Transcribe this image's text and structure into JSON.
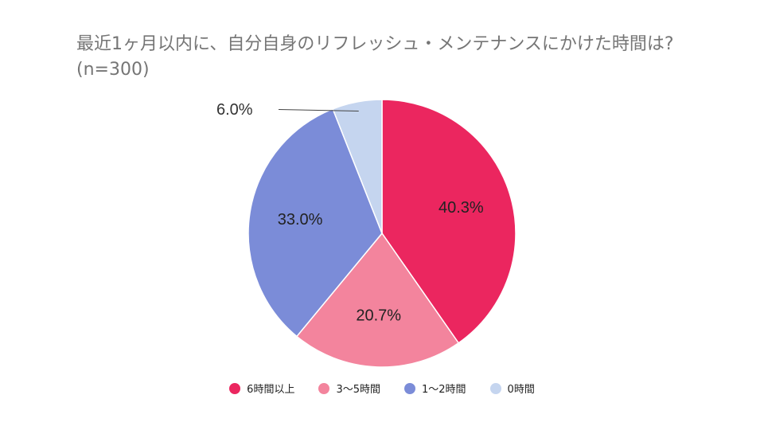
{
  "chart_data": {
    "type": "pie",
    "title": "最近1ヶ月以内に、自分自身のリフレッシュ・メンテナンスにかけた時間は?(n=300)",
    "categories": [
      "6時間以上",
      "3〜5時間",
      "1〜2時間",
      "0時間"
    ],
    "values": [
      40.3,
      20.7,
      33.0,
      6.0
    ],
    "data_labels": [
      "40.3%",
      "20.7%",
      "33.0%",
      "6.0%"
    ],
    "colors": [
      "#eb265f",
      "#f3849d",
      "#7b8cd8",
      "#c5d5ef"
    ],
    "start": "12 o'clock",
    "direction": "clockwise",
    "legend": "bottom"
  }
}
